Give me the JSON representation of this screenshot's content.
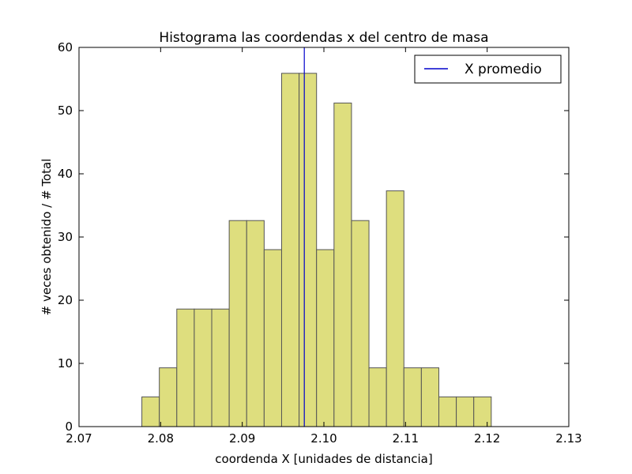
{
  "chart_data": {
    "type": "bar",
    "title": "Histograma las coordendas x del centro de masa",
    "xlabel": "coordenda X [unidades de distancia]",
    "ylabel": "# veces obtenido / # Total",
    "xlim": [
      2.07,
      2.13
    ],
    "ylim": [
      0,
      60
    ],
    "xticks": [
      "2.07",
      "2.08",
      "2.09",
      "2.10",
      "2.11",
      "2.12",
      "2.13"
    ],
    "yticks": [
      "0",
      "10",
      "20",
      "30",
      "40",
      "50",
      "60"
    ],
    "bins": {
      "start": 2.0777,
      "end": 2.1205,
      "values": [
        4.7,
        9.3,
        18.6,
        18.6,
        18.6,
        32.6,
        32.6,
        28.0,
        55.9,
        55.9,
        28.0,
        51.2,
        32.6,
        9.3,
        37.3,
        9.3,
        9.3,
        4.7,
        4.7,
        4.7
      ]
    },
    "bar_color": "#dede7e",
    "bar_edge_color": "#555555",
    "mean_line": {
      "x": 2.0976,
      "label": "X promedio",
      "color": "#0000cc"
    },
    "legend_position": "top-right",
    "grid": false
  }
}
